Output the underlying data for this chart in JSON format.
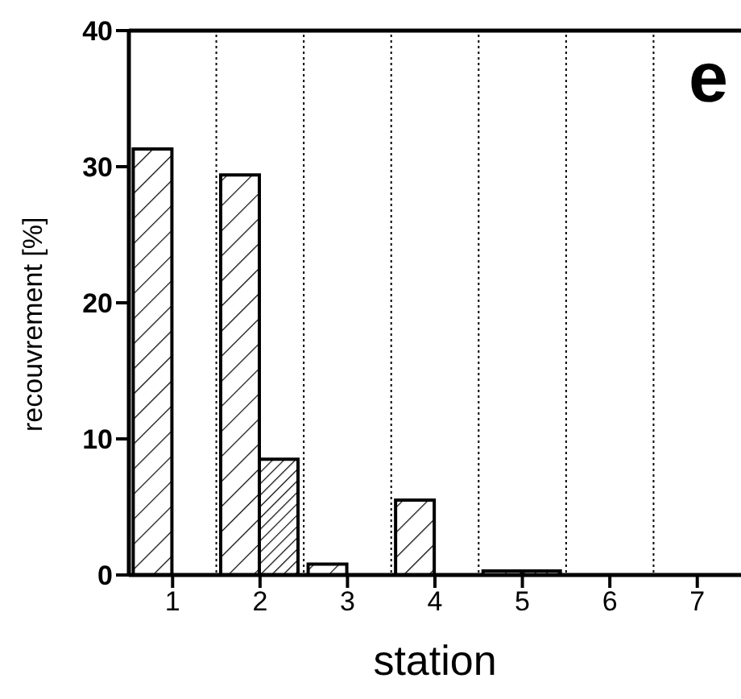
{
  "chart_data": {
    "type": "bar",
    "xlabel": "station",
    "ylabel": "recouvrement [%]",
    "categories": [
      "1",
      "2",
      "3",
      "4",
      "5",
      "6",
      "7"
    ],
    "series": [
      {
        "color": "#000000",
        "values": [
          31.3,
          29.4,
          0.8,
          5.5,
          0.3,
          null,
          null
        ]
      },
      {
        "color": "#000000",
        "values": [
          null,
          8.5,
          null,
          null,
          0.3,
          null,
          null
        ]
      }
    ],
    "ylim": [
      0,
      40
    ],
    "yticks": [
      0,
      10,
      20,
      30,
      40
    ],
    "grid": false,
    "legend": false,
    "annotations": [
      "e"
    ]
  }
}
